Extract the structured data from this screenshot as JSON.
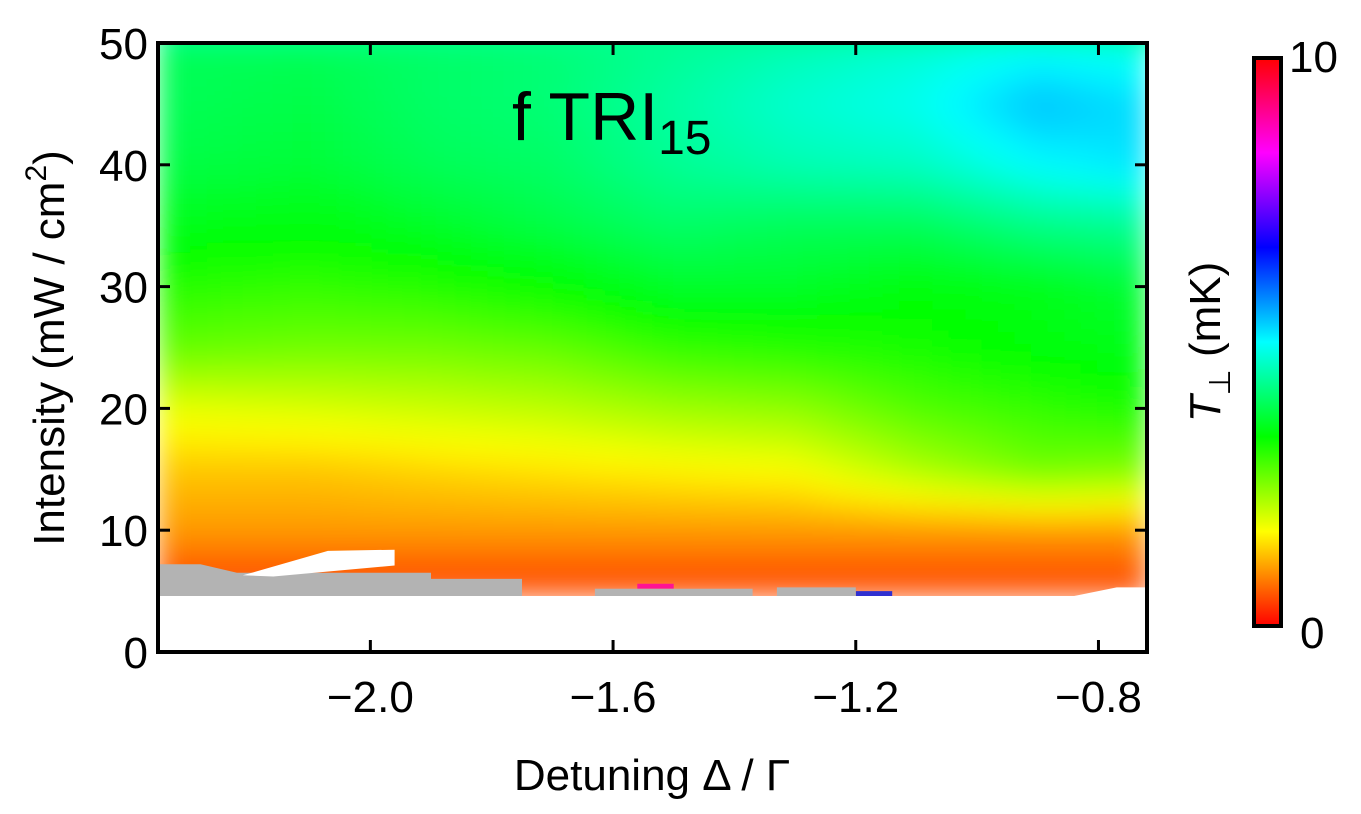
{
  "chart_data": {
    "type": "heatmap",
    "title_main": "f TRI",
    "title_sub": "15",
    "xlabel": "Detuning Δ / Γ",
    "ylabel_main": "Intensity (mW / cm",
    "ylabel_sup": "2",
    "ylabel_close": ")",
    "xlim": [
      -2.35,
      -0.72
    ],
    "ylim": [
      0,
      50
    ],
    "x_ticks": [
      {
        "value": -2.0,
        "label": "−2.0"
      },
      {
        "value": -1.6,
        "label": "−1.6"
      },
      {
        "value": -1.2,
        "label": "−1.2"
      },
      {
        "value": -0.8,
        "label": "−0.8"
      }
    ],
    "y_ticks": [
      {
        "value": 0,
        "label": "0"
      },
      {
        "value": 10,
        "label": "10"
      },
      {
        "value": 20,
        "label": "20"
      },
      {
        "value": 30,
        "label": "30"
      },
      {
        "value": 40,
        "label": "40"
      },
      {
        "value": 50,
        "label": "50"
      }
    ],
    "colorbar": {
      "label_main": "T",
      "label_sub": "⊥",
      "label_unit": " (mK)",
      "min": 0,
      "max": 10,
      "min_label": "0",
      "max_label": "10",
      "colorscale": [
        "#ff0000",
        "#ffff00",
        "#00ff00",
        "#00ffff",
        "#0000ff",
        "#ff00ff",
        "#ff0000"
      ]
    },
    "grid_x": [
      -2.35,
      -2.1,
      -1.9,
      -1.7,
      -1.5,
      -1.3,
      -1.1,
      -0.9,
      -0.72
    ],
    "grid_y": [
      6,
      10,
      15,
      20,
      25,
      30,
      35,
      40,
      45,
      50
    ],
    "z": [
      [
        0.5,
        0.5,
        0.5,
        0.5,
        0.5,
        0.5,
        0.5,
        0.5,
        0.5
      ],
      [
        1.0,
        1.0,
        1.0,
        1.0,
        1.0,
        1.0,
        1.0,
        1.0,
        1.0
      ],
      [
        1.3,
        1.3,
        1.4,
        1.5,
        1.6,
        1.7,
        2.2,
        2.6,
        2.5
      ],
      [
        1.8,
        1.9,
        2.0,
        2.1,
        2.3,
        2.4,
        2.8,
        3.0,
        3.2
      ],
      [
        2.7,
        2.6,
        2.6,
        2.7,
        3.0,
        3.1,
        3.2,
        3.4,
        3.5
      ],
      [
        3.1,
        3.0,
        3.1,
        3.3,
        3.6,
        3.6,
        3.4,
        3.5,
        3.7
      ],
      [
        3.5,
        3.4,
        3.6,
        3.8,
        4.0,
        3.9,
        3.9,
        4.2,
        4.3
      ],
      [
        3.8,
        3.7,
        3.9,
        4.0,
        4.3,
        4.5,
        4.6,
        5.0,
        5.2
      ],
      [
        3.9,
        3.8,
        4.0,
        4.1,
        4.4,
        4.7,
        4.9,
        5.4,
        5.2
      ],
      [
        3.9,
        3.9,
        4.0,
        4.1,
        4.3,
        4.5,
        4.7,
        4.9,
        4.8
      ]
    ],
    "no_data_regions": [
      {
        "color": "#b3b3b3",
        "points": [
          [
            -2.35,
            4.6
          ],
          [
            -1.75,
            4.6
          ],
          [
            -1.75,
            6.0
          ],
          [
            -1.9,
            6.0
          ],
          [
            -1.9,
            6.5
          ],
          [
            -2.22,
            6.5
          ],
          [
            -2.28,
            7.2
          ],
          [
            -2.35,
            7.2
          ]
        ]
      },
      {
        "color": "#b3b3b3",
        "points": [
          [
            -1.63,
            4.6
          ],
          [
            -1.37,
            4.6
          ],
          [
            -1.37,
            5.2
          ],
          [
            -1.63,
            5.2
          ]
        ]
      },
      {
        "color": "#b3b3b3",
        "points": [
          [
            -1.33,
            4.6
          ],
          [
            -1.2,
            4.6
          ],
          [
            -1.2,
            5.3
          ],
          [
            -1.33,
            5.3
          ]
        ]
      },
      {
        "color": "#ffffff",
        "points": [
          [
            -2.21,
            6.3
          ],
          [
            -2.07,
            8.3
          ],
          [
            -1.96,
            8.4
          ],
          [
            -1.96,
            7.1
          ],
          [
            -2.16,
            6.2
          ]
        ]
      },
      {
        "color": "#ffffff",
        "points": [
          [
            -2.35,
            0
          ],
          [
            -0.72,
            0
          ],
          [
            -0.72,
            5.3
          ],
          [
            -0.77,
            5.3
          ],
          [
            -0.84,
            4.6
          ],
          [
            -2.35,
            4.6
          ]
        ]
      }
    ],
    "data_accents": [
      {
        "color": "#ff1493",
        "points": [
          [
            -1.56,
            5.2
          ],
          [
            -1.5,
            5.2
          ],
          [
            -1.5,
            5.6
          ],
          [
            -1.56,
            5.6
          ]
        ]
      },
      {
        "color": "#3030d0",
        "points": [
          [
            -1.2,
            4.6
          ],
          [
            -1.14,
            4.6
          ],
          [
            -1.14,
            5.0
          ],
          [
            -1.2,
            5.0
          ]
        ]
      }
    ]
  }
}
